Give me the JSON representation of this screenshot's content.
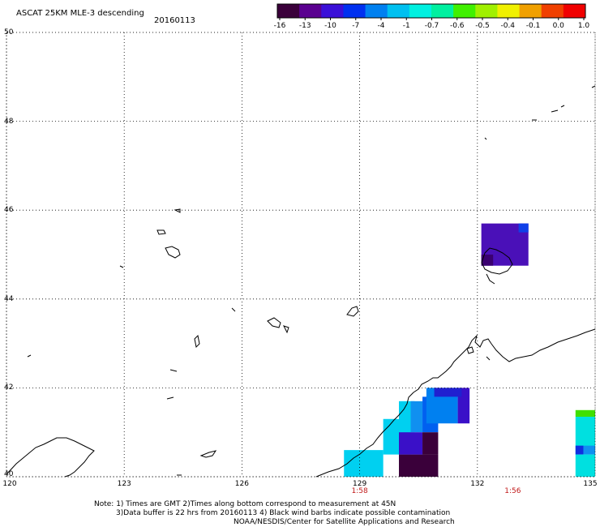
{
  "header": {
    "title": "ASCAT 25KM MLE-3 descending",
    "date": "20160113"
  },
  "colorbar": {
    "labels": [
      "-16",
      "-13",
      "-10",
      "-7",
      "-4",
      "-1",
      "-0.7",
      "-0.6",
      "-0.5",
      "-0.4",
      "-0.1",
      "0.0",
      "1.0"
    ],
    "colors": [
      "#3a003a",
      "#5a0090",
      "#3a10d8",
      "#0030f0",
      "#0080f0",
      "#00c0f0",
      "#00f0e0",
      "#00f0a0",
      "#40f000",
      "#a0f000",
      "#f0f000",
      "#f0a000",
      "#f04000",
      "#f00000"
    ]
  },
  "map": {
    "lat_labels": [
      "50",
      "48",
      "46",
      "44",
      "42",
      "40"
    ],
    "lon_labels": [
      "120",
      "123",
      "126",
      "129",
      "132",
      "135"
    ],
    "lat_range": [
      40,
      50
    ],
    "lon_range": [
      120,
      135
    ],
    "pass_times": [
      {
        "lon": 129,
        "label": "1:58"
      },
      {
        "lon": 132.9,
        "label": "1:56"
      }
    ],
    "cells": [
      {
        "lon0": 132.1,
        "lon1": 133.3,
        "lat0": 44.75,
        "lat1": 45.7,
        "color": "#4a10b8"
      },
      {
        "lon0": 133.05,
        "lon1": 133.3,
        "lat0": 45.5,
        "lat1": 45.7,
        "color": "#1040e8"
      },
      {
        "lon0": 132.1,
        "lon1": 132.4,
        "lat0": 44.75,
        "lat1": 45.0,
        "color": "#3a0070"
      },
      {
        "lon0": 128.6,
        "lon1": 129.6,
        "lat0": 40.0,
        "lat1": 40.6,
        "color": "#00d0f0"
      },
      {
        "lon0": 129.6,
        "lon1": 130.3,
        "lat0": 40.5,
        "lat1": 41.3,
        "color": "#00d0f0"
      },
      {
        "lon0": 130.0,
        "lon1": 130.4,
        "lat0": 41.0,
        "lat1": 41.7,
        "color": "#00d0f0"
      },
      {
        "lon0": 130.3,
        "lon1": 130.6,
        "lat0": 41.0,
        "lat1": 41.7,
        "color": "#1090f0"
      },
      {
        "lon0": 130.6,
        "lon1": 131.0,
        "lat0": 41.0,
        "lat1": 41.8,
        "color": "#0060f0"
      },
      {
        "lon0": 130.7,
        "lon1": 131.5,
        "lat0": 41.2,
        "lat1": 42.0,
        "color": "#0080f0"
      },
      {
        "lon0": 131.5,
        "lon1": 131.8,
        "lat0": 41.2,
        "lat1": 42.0,
        "color": "#3a10c8"
      },
      {
        "lon0": 130.9,
        "lon1": 131.6,
        "lat0": 41.8,
        "lat1": 42.0,
        "color": "#2020d0"
      },
      {
        "lon0": 130.0,
        "lon1": 131.0,
        "lat0": 40.0,
        "lat1": 40.5,
        "color": "#3a003a"
      },
      {
        "lon0": 130.0,
        "lon1": 130.6,
        "lat0": 40.5,
        "lat1": 41.0,
        "color": "#3a10c8"
      },
      {
        "lon0": 130.6,
        "lon1": 131.0,
        "lat0": 40.5,
        "lat1": 41.0,
        "color": "#3a003a"
      },
      {
        "lon0": 134.5,
        "lon1": 135.0,
        "lat0": 41.35,
        "lat1": 41.5,
        "color": "#40e000"
      },
      {
        "lon0": 134.5,
        "lon1": 135.0,
        "lat0": 40.5,
        "lat1": 41.35,
        "color": "#00e0e0"
      },
      {
        "lon0": 134.5,
        "lon1": 134.7,
        "lat0": 40.5,
        "lat1": 40.7,
        "color": "#1030e0"
      },
      {
        "lon0": 134.7,
        "lon1": 135.0,
        "lat0": 40.5,
        "lat1": 40.7,
        "color": "#1090f0"
      },
      {
        "lon0": 134.5,
        "lon1": 135.0,
        "lat0": 40.0,
        "lat1": 40.5,
        "color": "#00e0e0"
      }
    ]
  },
  "notes": {
    "line1": "Note: 1) Times are GMT 2)Times along bottom correspond to measurement at 45N",
    "line2": "3)Data buffer is 22 hrs from 20160113 4) Black wind barbs indicate possible contamination",
    "line3": "NOAA/NESDIS/Center for Satellite Applications and Research"
  }
}
